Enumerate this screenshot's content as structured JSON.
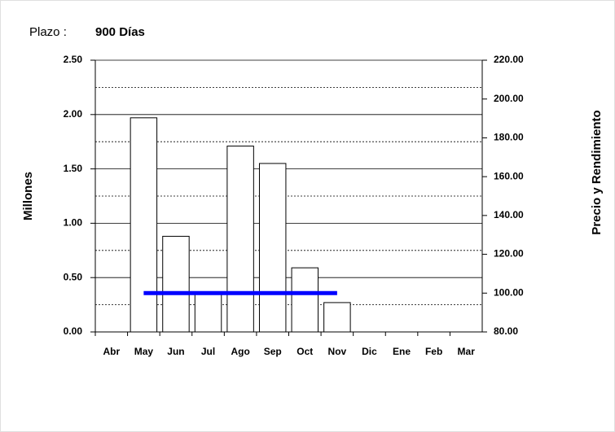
{
  "chart_data": {
    "type": "bar",
    "title_label": "Plazo :",
    "title": "900 Días",
    "ylabel": "Millones",
    "y2label": "Precio y Rendimiento",
    "categories": [
      "Abr",
      "May",
      "Jun",
      "Jul",
      "Ago",
      "Sep",
      "Oct",
      "Nov",
      "Dic",
      "Ene",
      "Feb",
      "Mar"
    ],
    "series": [
      {
        "color": "#ffffff",
        "values": [
          null,
          1.97,
          0.88,
          0.36,
          1.71,
          1.55,
          0.59,
          0.27,
          null,
          null,
          null,
          null
        ]
      },
      {
        "type": "line",
        "axis": "y2",
        "color": "#0000ff",
        "values": [
          null,
          100,
          100,
          100,
          100,
          100,
          100,
          100,
          null,
          null,
          null,
          null
        ]
      }
    ],
    "ylim": [
      0,
      2.5
    ],
    "yticks": [
      {
        "value": 0,
        "label": "0.00"
      },
      {
        "value": 0.5,
        "label": "0.50"
      },
      {
        "value": 1,
        "label": "1.00"
      },
      {
        "value": 1.5,
        "label": "1.50"
      },
      {
        "value": 2,
        "label": "2.00"
      },
      {
        "value": 2.5,
        "label": "2.50"
      }
    ],
    "minor_yticks": [
      0.25,
      0.75,
      1.25,
      1.75,
      2.25
    ],
    "y2lim": [
      80,
      220
    ],
    "y2ticks": [
      {
        "value": 80,
        "label": "80.00"
      },
      {
        "value": 100,
        "label": "100.00"
      },
      {
        "value": 120,
        "label": "120.00"
      },
      {
        "value": 140,
        "label": "140.00"
      },
      {
        "value": 160,
        "label": "160.00"
      },
      {
        "value": 180,
        "label": "180.00"
      },
      {
        "value": 200,
        "label": "200.00"
      },
      {
        "value": 220,
        "label": "220.00"
      }
    ],
    "grid": true
  }
}
